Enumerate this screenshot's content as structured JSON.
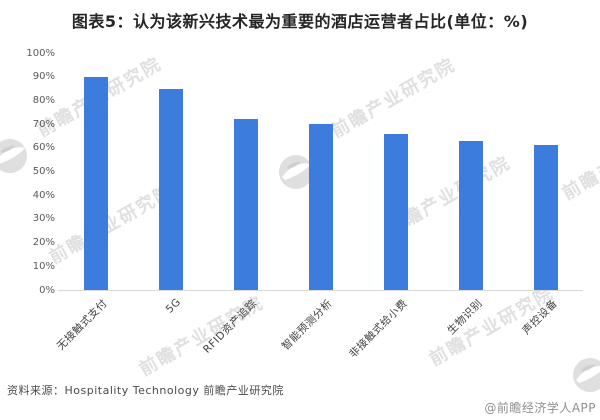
{
  "title": "图表5：认为该新兴技术最为重要的酒店运营者占比(单位：%)",
  "footer": {
    "source": "资料来源：Hospitality Technology 前瞻产业研究院",
    "credit": "@前瞻经济学人APP"
  },
  "watermark": {
    "text": "前瞻产业研究院",
    "subtext": "· · · · · · · · · · · · · · · · · · · ·"
  },
  "colors": {
    "bar": "#3b7cdd",
    "axis_line": "#d9d9d9",
    "y_tick_label": "#595959",
    "x_tick_label": "#404040",
    "watermark": "#e0e0e0"
  },
  "chart_data": {
    "type": "bar",
    "title": "图表5：认为该新兴技术最为重要的酒店运营者占比(单位：%)",
    "unit": "%",
    "categories": [
      "无接触式支付",
      "5G",
      "RFID资产追踪",
      "智能预测分析",
      "非接触式给小费",
      "生物识别",
      "声控设备"
    ],
    "values": [
      90,
      85,
      72,
      70,
      66,
      63,
      61
    ],
    "xlabel": "",
    "ylabel": "",
    "ylim": [
      0,
      100
    ],
    "y_tick_step": 10,
    "y_tick_labels": [
      "0%",
      "10%",
      "20%",
      "30%",
      "40%",
      "50%",
      "60%",
      "70%",
      "80%",
      "90%",
      "100%"
    ],
    "grid": false,
    "legend": false,
    "bar_color": "#3b7cdd",
    "x_label_rotation_deg": -45
  }
}
